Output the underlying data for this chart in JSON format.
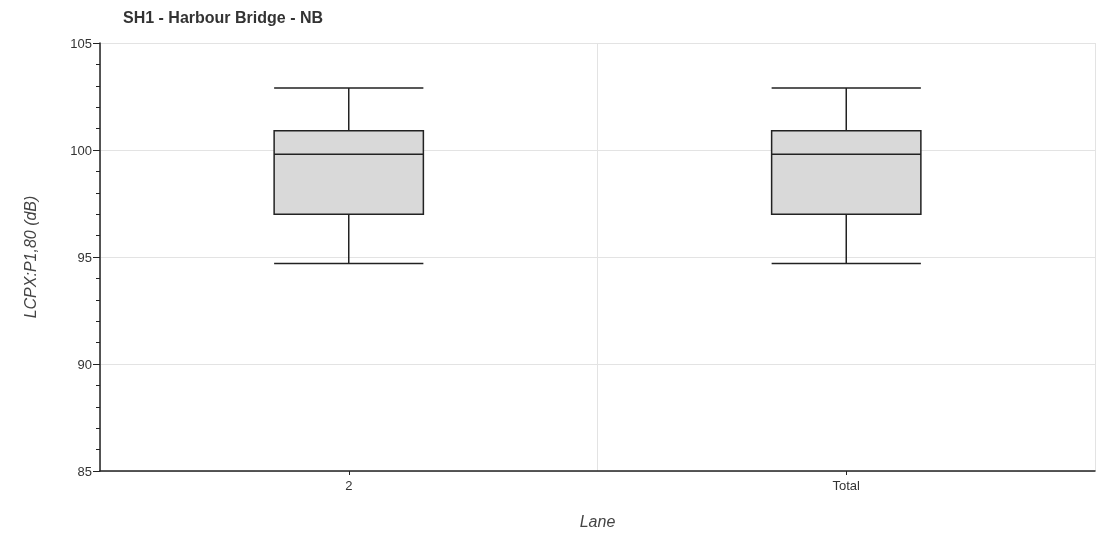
{
  "chart_data": {
    "type": "box",
    "title": "SH1 - Harbour Bridge - NB",
    "xlabel": "Lane",
    "ylabel": "LCPX:P1,80 (dB)",
    "categories": [
      "2",
      "Total"
    ],
    "boxes": [
      {
        "low": 94.7,
        "q1": 97.0,
        "median": 99.8,
        "q3": 100.9,
        "high": 102.9
      },
      {
        "low": 94.7,
        "q1": 97.0,
        "median": 99.8,
        "q3": 100.9,
        "high": 102.9
      }
    ],
    "color": "#d9d9d9",
    "ylim": [
      85,
      105
    ],
    "yticks": [
      85,
      90,
      95,
      100,
      105
    ],
    "grid": true
  }
}
